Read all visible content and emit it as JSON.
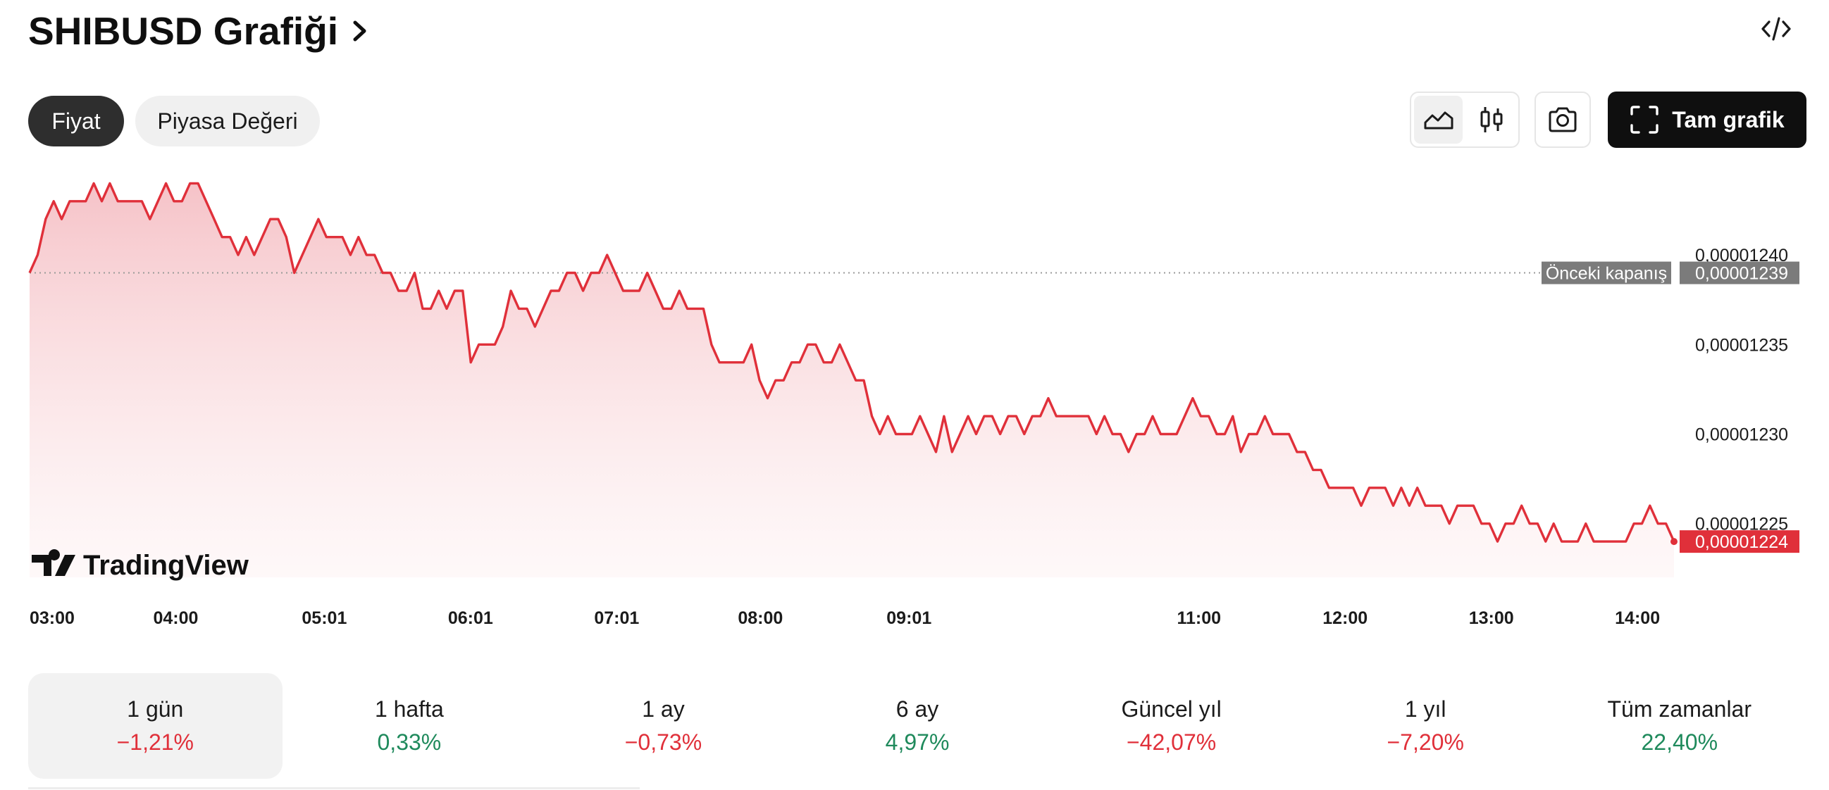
{
  "header": {
    "title": "SHIBUSD Grafiği"
  },
  "tabs": [
    {
      "label": "Fiyat",
      "active": true
    },
    {
      "label": "Piyasa Değeri",
      "active": false
    }
  ],
  "toolbar": {
    "area_icon": "area-chart-icon",
    "candle_icon": "candlestick-icon",
    "camera_icon": "camera-icon",
    "fullscreen_label": "Tam grafik",
    "embed_icon": "code-embed-icon"
  },
  "chart_data": {
    "type": "area",
    "watermark": "TradingView",
    "line_color": "#e0303a",
    "fill_color": "#f6c9cd",
    "x_ticks": [
      "03:00",
      "04:00",
      "05:01",
      "06:01",
      "07:01",
      "08:00",
      "09:01",
      "11:00",
      "12:00",
      "13:00",
      "14:00"
    ],
    "y_ticks": [
      "0,00001240",
      "0,00001235",
      "0,00001230",
      "0,00001225"
    ],
    "y_tick_values": [
      1.24e-05,
      1.235e-05,
      1.23e-05,
      1.225e-05
    ],
    "ylim": [
      1.222e-05,
      1.2448e-05
    ],
    "previous_close": {
      "label": "Önceki kapanış",
      "value": 1.239e-05,
      "value_label": "0,00001239"
    },
    "last_price": {
      "value": 1.224e-05,
      "value_label": "0,00001224"
    },
    "series": [
      {
        "values": [
          1.239e-05,
          1.24e-05,
          1.242e-05,
          1.243e-05,
          1.242e-05,
          1.243e-05,
          1.243e-05,
          1.243e-05,
          1.244e-05,
          1.243e-05,
          1.244e-05,
          1.243e-05,
          1.243e-05,
          1.243e-05,
          1.243e-05,
          1.242e-05,
          1.243e-05,
          1.244e-05,
          1.243e-05,
          1.243e-05,
          1.244e-05,
          1.244e-05,
          1.243e-05,
          1.242e-05,
          1.241e-05,
          1.241e-05,
          1.24e-05,
          1.241e-05,
          1.24e-05,
          1.241e-05,
          1.242e-05,
          1.242e-05,
          1.241e-05,
          1.239e-05,
          1.24e-05,
          1.241e-05,
          1.242e-05,
          1.241e-05,
          1.241e-05,
          1.241e-05,
          1.24e-05,
          1.241e-05,
          1.24e-05,
          1.24e-05,
          1.239e-05,
          1.239e-05,
          1.238e-05,
          1.238e-05,
          1.239e-05,
          1.237e-05,
          1.237e-05,
          1.238e-05,
          1.237e-05,
          1.238e-05,
          1.238e-05,
          1.234e-05,
          1.235e-05,
          1.235e-05,
          1.235e-05,
          1.236e-05,
          1.238e-05,
          1.237e-05,
          1.237e-05,
          1.236e-05,
          1.237e-05,
          1.238e-05,
          1.238e-05,
          1.239e-05,
          1.239e-05,
          1.238e-05,
          1.239e-05,
          1.239e-05,
          1.24e-05,
          1.239e-05,
          1.238e-05,
          1.238e-05,
          1.238e-05,
          1.239e-05,
          1.238e-05,
          1.237e-05,
          1.237e-05,
          1.238e-05,
          1.237e-05,
          1.237e-05,
          1.237e-05,
          1.235e-05,
          1.234e-05,
          1.234e-05,
          1.234e-05,
          1.234e-05,
          1.235e-05,
          1.233e-05,
          1.232e-05,
          1.233e-05,
          1.233e-05,
          1.234e-05,
          1.234e-05,
          1.235e-05,
          1.235e-05,
          1.234e-05,
          1.234e-05,
          1.235e-05,
          1.234e-05,
          1.233e-05,
          1.233e-05,
          1.231e-05,
          1.23e-05,
          1.231e-05,
          1.23e-05,
          1.23e-05,
          1.23e-05,
          1.231e-05,
          1.23e-05,
          1.229e-05,
          1.231e-05,
          1.229e-05,
          1.23e-05,
          1.231e-05,
          1.23e-05,
          1.231e-05,
          1.231e-05,
          1.23e-05,
          1.231e-05,
          1.231e-05,
          1.23e-05,
          1.231e-05,
          1.231e-05,
          1.232e-05,
          1.231e-05,
          1.231e-05,
          1.231e-05,
          1.231e-05,
          1.231e-05,
          1.23e-05,
          1.231e-05,
          1.23e-05,
          1.23e-05,
          1.229e-05,
          1.23e-05,
          1.23e-05,
          1.231e-05,
          1.23e-05,
          1.23e-05,
          1.23e-05,
          1.231e-05,
          1.232e-05,
          1.231e-05,
          1.231e-05,
          1.23e-05,
          1.23e-05,
          1.231e-05,
          1.229e-05,
          1.23e-05,
          1.23e-05,
          1.231e-05,
          1.23e-05,
          1.23e-05,
          1.23e-05,
          1.229e-05,
          1.229e-05,
          1.228e-05,
          1.228e-05,
          1.227e-05,
          1.227e-05,
          1.227e-05,
          1.227e-05,
          1.226e-05,
          1.227e-05,
          1.227e-05,
          1.227e-05,
          1.226e-05,
          1.227e-05,
          1.226e-05,
          1.227e-05,
          1.226e-05,
          1.226e-05,
          1.226e-05,
          1.225e-05,
          1.226e-05,
          1.226e-05,
          1.226e-05,
          1.225e-05,
          1.225e-05,
          1.224e-05,
          1.225e-05,
          1.225e-05,
          1.226e-05,
          1.225e-05,
          1.225e-05,
          1.224e-05,
          1.225e-05,
          1.224e-05,
          1.224e-05,
          1.224e-05,
          1.225e-05,
          1.224e-05,
          1.224e-05,
          1.224e-05,
          1.224e-05,
          1.224e-05,
          1.225e-05,
          1.225e-05,
          1.226e-05,
          1.225e-05,
          1.225e-05,
          1.224e-05
        ]
      }
    ]
  },
  "periods": [
    {
      "label": "1 gün",
      "change": "−1,21%",
      "sentiment": "neg",
      "selected": true
    },
    {
      "label": "1 hafta",
      "change": "0,33%",
      "sentiment": "pos",
      "selected": false
    },
    {
      "label": "1 ay",
      "change": "−0,73%",
      "sentiment": "neg",
      "selected": false
    },
    {
      "label": "6 ay",
      "change": "4,97%",
      "sentiment": "pos",
      "selected": false
    },
    {
      "label": "Güncel yıl",
      "change": "−42,07%",
      "sentiment": "neg",
      "selected": false
    },
    {
      "label": "1 yıl",
      "change": "−7,20%",
      "sentiment": "neg",
      "selected": false
    },
    {
      "label": "Tüm zamanlar",
      "change": "22,40%",
      "sentiment": "pos",
      "selected": false
    }
  ]
}
